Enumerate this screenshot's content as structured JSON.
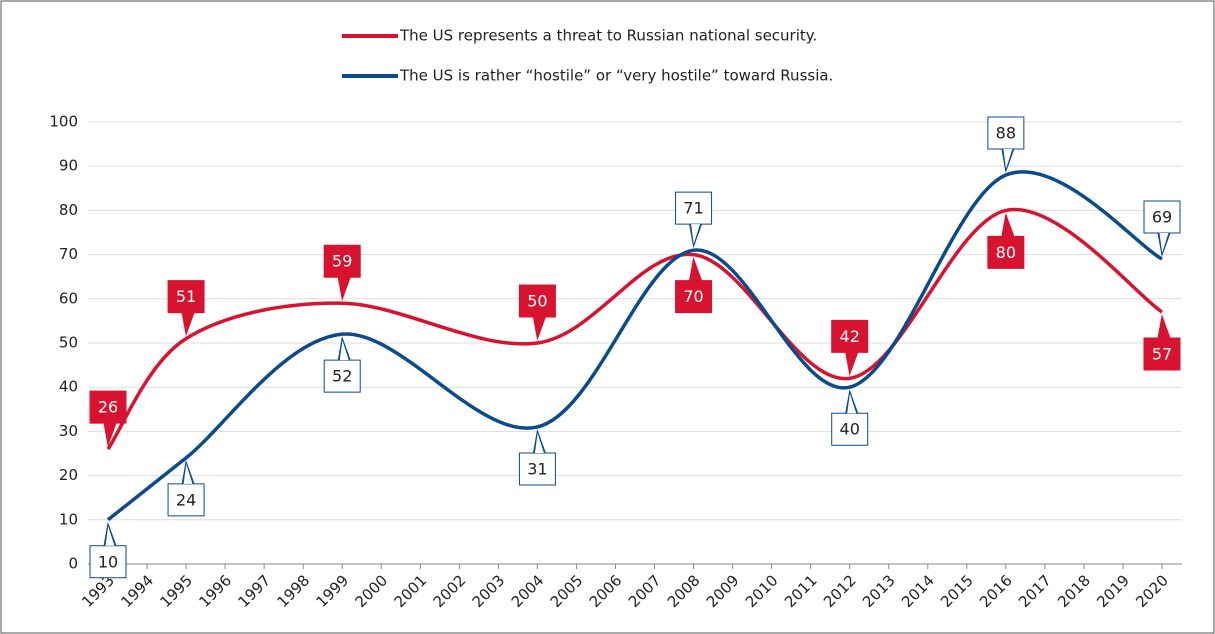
{
  "chart_data": {
    "type": "line",
    "x": [
      1993,
      1995,
      1999,
      2004,
      2008,
      2012,
      2016,
      2020
    ],
    "series": [
      {
        "name": "The US represents a threat to Russian national security.",
        "color": "#d7132f",
        "values": [
          26,
          51,
          59,
          50,
          70,
          42,
          80,
          57
        ]
      },
      {
        "name": "The US is rather “hostile” or “very hostile” toward Russia.",
        "color": "#0b4a8b",
        "values": [
          10,
          24,
          52,
          31,
          71,
          40,
          88,
          69
        ]
      }
    ],
    "xlim": [
      1993,
      2020
    ],
    "xticks": [
      1993,
      1994,
      1995,
      1996,
      1997,
      1998,
      1999,
      2000,
      2001,
      2002,
      2003,
      2004,
      2005,
      2006,
      2007,
      2008,
      2009,
      2010,
      2011,
      2012,
      2013,
      2014,
      2015,
      2016,
      2017,
      2018,
      2019,
      2020
    ],
    "ylim": [
      0,
      100
    ],
    "yticks": [
      0,
      10,
      20,
      30,
      40,
      50,
      60,
      70,
      80,
      90,
      100
    ],
    "grid": true,
    "legend": "top"
  }
}
